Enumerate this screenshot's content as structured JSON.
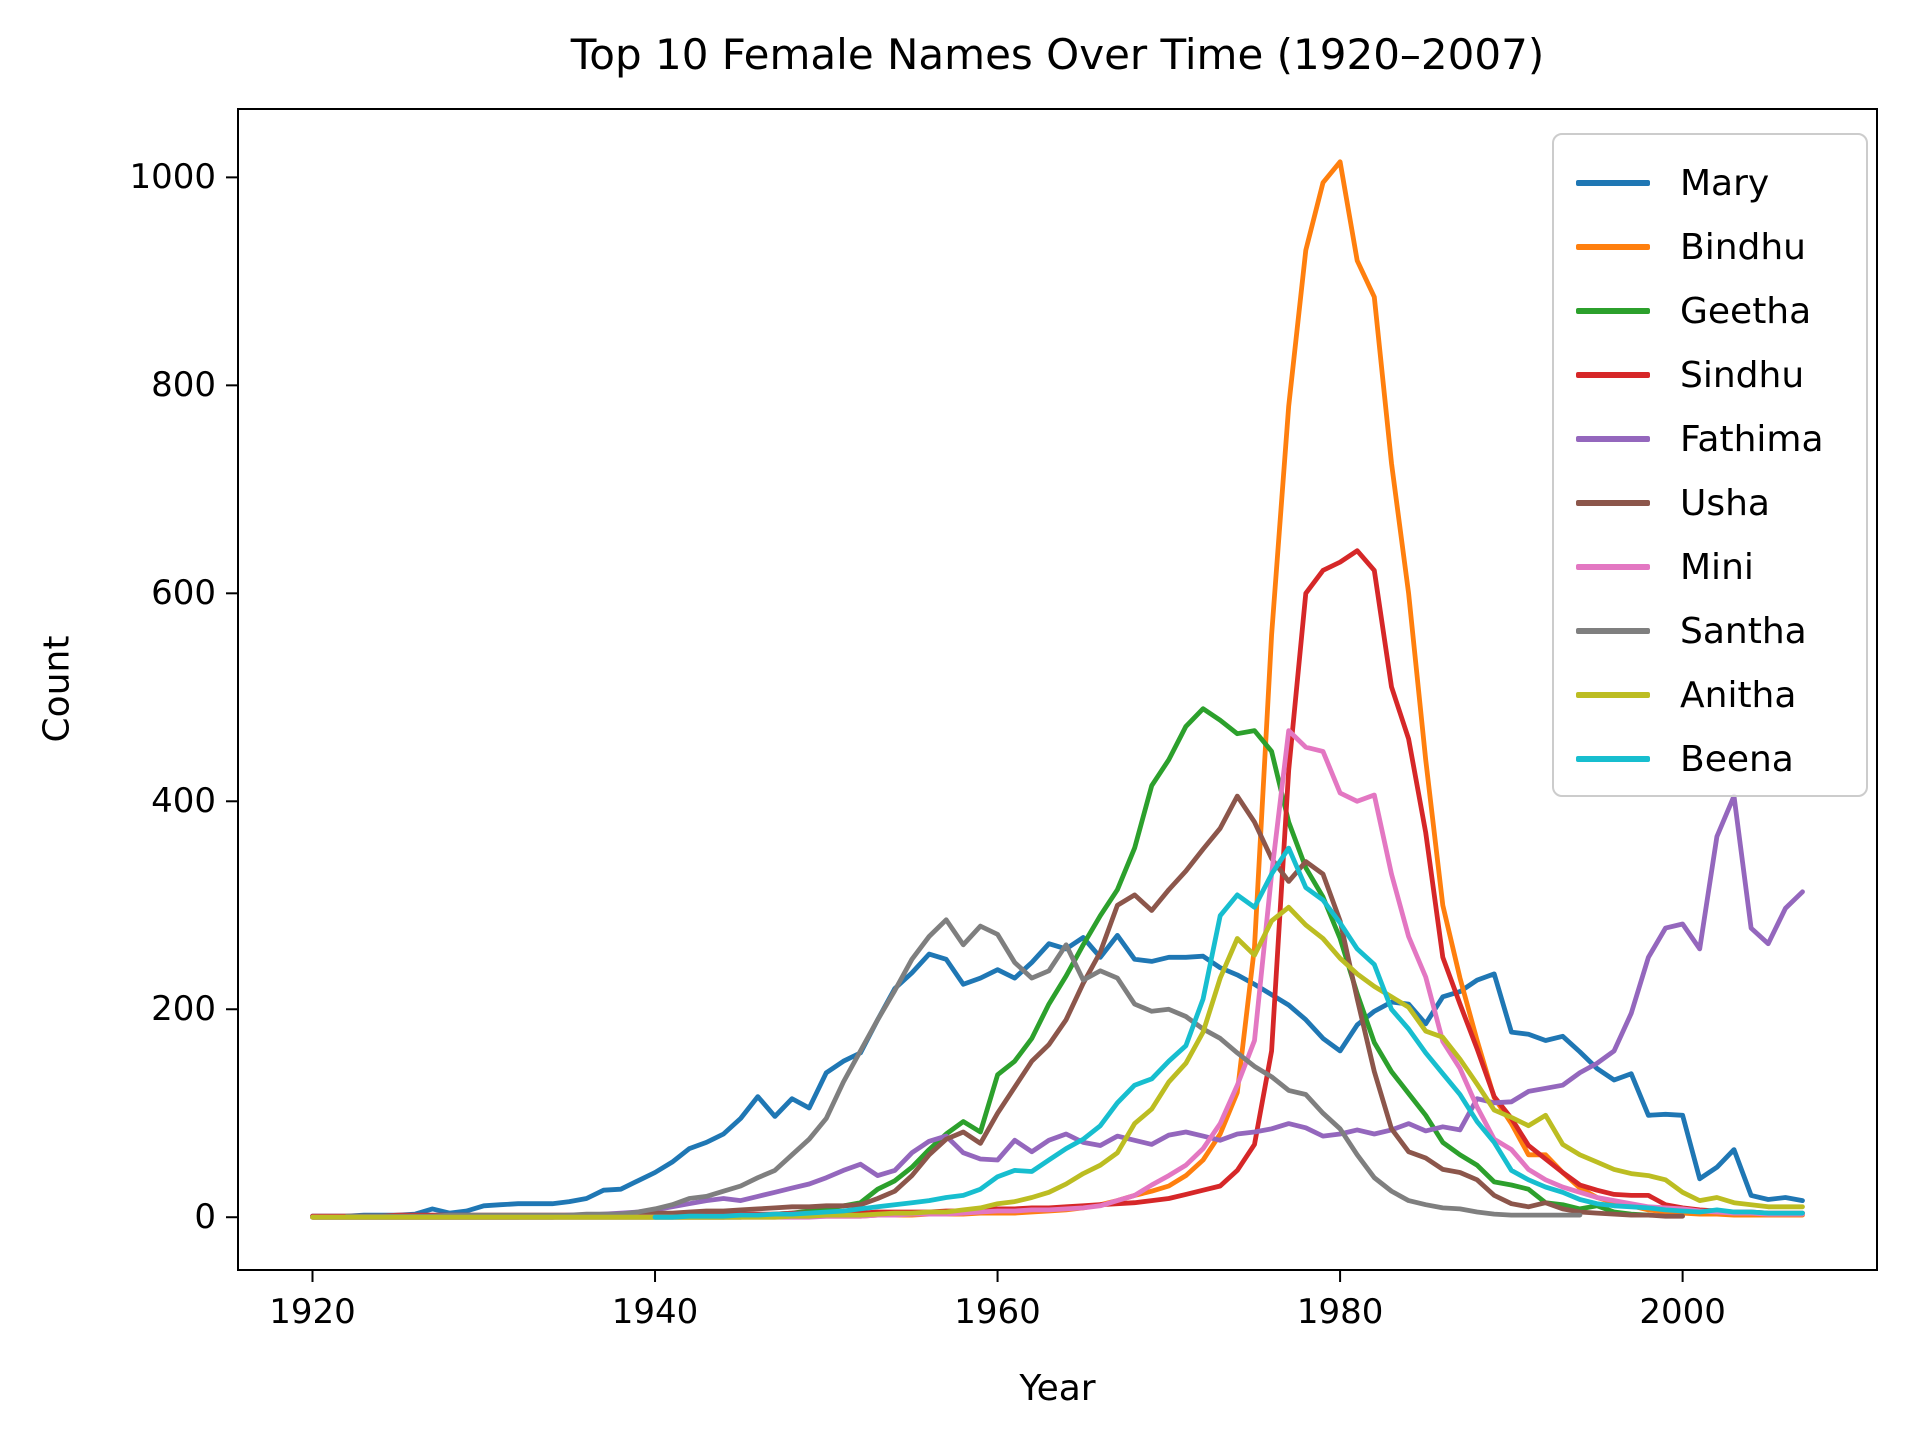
{
  "figure": {
    "background": "#ffffff"
  },
  "chart_data": {
    "type": "line",
    "title": "Top 10 Female Names Over Time (1920–2007)",
    "xlabel": "Year",
    "ylabel": "Count",
    "grid": false,
    "legend_position": "upper right",
    "xticks": [
      1920,
      1940,
      1960,
      1980,
      2000
    ],
    "yticks": [
      0,
      200,
      400,
      600,
      800,
      1000
    ],
    "xlim": [
      1915.65,
      2011.35
    ],
    "ylim": [
      -50.75,
      1065.75
    ],
    "years": [
      1920,
      1921,
      1922,
      1923,
      1924,
      1925,
      1926,
      1927,
      1928,
      1929,
      1930,
      1931,
      1932,
      1933,
      1934,
      1935,
      1936,
      1937,
      1938,
      1939,
      1940,
      1941,
      1942,
      1943,
      1944,
      1945,
      1946,
      1947,
      1948,
      1949,
      1950,
      1951,
      1952,
      1953,
      1954,
      1955,
      1956,
      1957,
      1958,
      1959,
      1960,
      1961,
      1962,
      1963,
      1964,
      1965,
      1966,
      1967,
      1968,
      1969,
      1970,
      1971,
      1972,
      1973,
      1974,
      1975,
      1976,
      1977,
      1978,
      1979,
      1980,
      1981,
      1982,
      1983,
      1984,
      1985,
      1986,
      1987,
      1988,
      1989,
      1990,
      1991,
      1992,
      1993,
      1994,
      1995,
      1996,
      1997,
      1998,
      1999,
      2000,
      2001,
      2002,
      2003,
      2004,
      2005,
      2006,
      2007
    ],
    "series": [
      {
        "name": "Mary",
        "color": "#1f77b4",
        "values": [
          1,
          1,
          1,
          2,
          2,
          2,
          3,
          8,
          4,
          6,
          11,
          12,
          13,
          13,
          13,
          15,
          18,
          26,
          27,
          35,
          43,
          53,
          66,
          72,
          80,
          95,
          116,
          97,
          114,
          105,
          139,
          150,
          158,
          190,
          220,
          235,
          253,
          248,
          224,
          230,
          238,
          230,
          245,
          263,
          258,
          269,
          250,
          271,
          248,
          246,
          250,
          250,
          251,
          240,
          233,
          224,
          214,
          204,
          190,
          172,
          160,
          185,
          198,
          207,
          205,
          186,
          212,
          217,
          228,
          234,
          178,
          176,
          170,
          174,
          159,
          143,
          132,
          138,
          98,
          99,
          98,
          37,
          48,
          65,
          21,
          17,
          19,
          16
        ]
      },
      {
        "name": "Bindhu",
        "color": "#ff7f0e",
        "values": [
          0,
          0,
          0,
          0,
          0,
          0,
          0,
          0,
          0,
          0,
          0,
          0,
          0,
          0,
          0,
          0,
          0,
          0,
          0,
          0,
          0,
          0,
          0,
          0,
          0,
          1,
          1,
          1,
          1,
          1,
          1,
          1,
          1,
          2,
          2,
          2,
          3,
          3,
          3,
          4,
          4,
          4,
          5,
          6,
          7,
          9,
          12,
          16,
          21,
          25,
          30,
          40,
          55,
          80,
          120,
          260,
          560,
          780,
          930,
          995,
          1015,
          920,
          885,
          725,
          600,
          440,
          300,
          230,
          170,
          115,
          90,
          60,
          60,
          43,
          28,
          19,
          14,
          11,
          7,
          5,
          4,
          3,
          3,
          2,
          2,
          2,
          2,
          2
        ]
      },
      {
        "name": "Geetha",
        "color": "#2ca02c",
        "values": [
          0,
          0,
          0,
          0,
          0,
          0,
          0,
          0,
          0,
          0,
          0,
          0,
          0,
          0,
          0,
          0,
          0,
          0,
          0,
          0,
          0,
          0,
          0,
          0,
          0,
          0,
          2,
          3,
          4,
          6,
          8,
          11,
          14,
          27,
          35,
          48,
          65,
          80,
          92,
          82,
          137,
          150,
          172,
          205,
          232,
          262,
          290,
          315,
          355,
          415,
          440,
          472,
          489,
          478,
          465,
          468,
          448,
          380,
          336,
          308,
          268,
          215,
          168,
          140,
          119,
          98,
          72,
          60,
          50,
          34,
          31,
          27,
          14,
          12,
          8,
          11,
          5,
          3,
          2,
          null,
          null,
          null,
          null,
          null,
          null,
          null,
          null,
          null
        ]
      },
      {
        "name": "Sindhu",
        "color": "#d62728",
        "values": [
          1,
          1,
          1,
          1,
          1,
          2,
          2,
          2,
          2,
          2,
          2,
          2,
          2,
          2,
          2,
          2,
          2,
          2,
          2,
          2,
          2,
          2,
          3,
          3,
          3,
          3,
          3,
          3,
          4,
          4,
          4,
          4,
          4,
          5,
          5,
          5,
          5,
          6,
          6,
          7,
          8,
          8,
          9,
          9,
          10,
          11,
          12,
          13,
          14,
          16,
          18,
          22,
          26,
          30,
          45,
          70,
          160,
          430,
          600,
          622,
          630,
          641,
          622,
          510,
          460,
          370,
          250,
          205,
          162,
          116,
          95,
          69,
          56,
          43,
          31,
          26,
          22,
          21,
          21,
          12,
          9,
          7,
          6,
          5,
          5,
          4,
          4,
          4
        ]
      },
      {
        "name": "Fathima",
        "color": "#9467bd",
        "values": [
          0,
          0,
          0,
          0,
          0,
          0,
          0,
          0,
          0,
          0,
          0,
          0,
          0,
          1,
          1,
          2,
          2,
          3,
          4,
          5,
          7,
          10,
          13,
          16,
          18,
          16,
          20,
          24,
          28,
          32,
          38,
          45,
          51,
          40,
          45,
          62,
          73,
          78,
          62,
          56,
          55,
          74,
          63,
          74,
          80,
          72,
          69,
          78,
          74,
          70,
          79,
          82,
          78,
          74,
          80,
          82,
          85,
          90,
          86,
          78,
          80,
          84,
          80,
          84,
          90,
          83,
          87,
          84,
          114,
          110,
          111,
          121,
          124,
          127,
          139,
          148,
          160,
          196,
          250,
          278,
          282,
          258,
          366,
          405,
          278,
          263,
          297,
          313
        ]
      },
      {
        "name": "Usha",
        "color": "#8c564b",
        "values": [
          0,
          0,
          0,
          0,
          0,
          0,
          0,
          0,
          0,
          0,
          0,
          0,
          0,
          0,
          0,
          1,
          2,
          2,
          3,
          3,
          4,
          4,
          5,
          6,
          6,
          7,
          8,
          9,
          10,
          10,
          11,
          11,
          12,
          18,
          25,
          40,
          60,
          75,
          82,
          71,
          100,
          125,
          150,
          166,
          190,
          225,
          255,
          300,
          310,
          295,
          315,
          333,
          354,
          374,
          405,
          380,
          345,
          323,
          342,
          330,
          285,
          210,
          140,
          85,
          63,
          57,
          46,
          43,
          36,
          21,
          13,
          10,
          14,
          8,
          5,
          4,
          3,
          2,
          2,
          1,
          1,
          null,
          null,
          null,
          null,
          null,
          null,
          null
        ]
      },
      {
        "name": "Mini",
        "color": "#e377c2",
        "values": [
          0,
          0,
          0,
          0,
          0,
          0,
          0,
          0,
          0,
          0,
          0,
          0,
          0,
          0,
          0,
          0,
          0,
          0,
          0,
          0,
          0,
          0,
          0,
          0,
          0,
          0,
          0,
          0,
          0,
          0,
          1,
          1,
          1,
          2,
          2,
          3,
          3,
          3,
          4,
          5,
          6,
          6,
          7,
          7,
          8,
          9,
          11,
          16,
          21,
          31,
          40,
          50,
          66,
          90,
          127,
          170,
          330,
          468,
          452,
          448,
          408,
          400,
          406,
          330,
          270,
          231,
          169,
          143,
          106,
          75,
          65,
          46,
          36,
          29,
          24,
          19,
          16,
          13,
          10,
          9,
          8,
          6,
          5,
          4,
          4,
          3,
          3,
          3
        ]
      },
      {
        "name": "Santha",
        "color": "#7f7f7f",
        "values": [
          null,
          null,
          1,
          1,
          1,
          1,
          1,
          1,
          2,
          2,
          2,
          2,
          2,
          2,
          2,
          2,
          3,
          3,
          3,
          5,
          8,
          12,
          18,
          20,
          25,
          30,
          38,
          45,
          60,
          75,
          95,
          130,
          160,
          190,
          218,
          248,
          270,
          286,
          262,
          280,
          272,
          245,
          230,
          237,
          262,
          228,
          237,
          230,
          205,
          198,
          200,
          193,
          181,
          172,
          158,
          145,
          135,
          122,
          118,
          100,
          85,
          60,
          38,
          25,
          16,
          12,
          9,
          8,
          5,
          3,
          2,
          2,
          2,
          2,
          2,
          null,
          null,
          null,
          null,
          null,
          null,
          null,
          null,
          null,
          null,
          null,
          null,
          null
        ]
      },
      {
        "name": "Anitha",
        "color": "#bcbd22",
        "values": [
          0,
          0,
          0,
          0,
          0,
          0,
          0,
          0,
          0,
          0,
          0,
          0,
          0,
          0,
          0,
          0,
          0,
          0,
          0,
          0,
          0,
          0,
          0,
          0,
          0,
          0,
          0,
          0,
          1,
          1,
          2,
          2,
          2,
          3,
          4,
          4,
          5,
          5,
          7,
          9,
          13,
          15,
          19,
          24,
          32,
          42,
          50,
          62,
          90,
          104,
          130,
          148,
          178,
          230,
          268,
          252,
          285,
          298,
          281,
          268,
          249,
          234,
          222,
          212,
          202,
          179,
          173,
          152,
          128,
          103,
          96,
          88,
          98,
          70,
          60,
          53,
          46,
          42,
          40,
          36,
          24,
          16,
          19,
          14,
          12,
          10,
          10,
          10
        ]
      },
      {
        "name": "Beena",
        "color": "#17becf",
        "values": [
          null,
          null,
          null,
          null,
          null,
          null,
          null,
          null,
          null,
          null,
          null,
          null,
          null,
          null,
          null,
          null,
          null,
          null,
          null,
          null,
          0,
          0,
          1,
          1,
          1,
          2,
          2,
          3,
          3,
          4,
          5,
          6,
          8,
          10,
          12,
          14,
          16,
          19,
          21,
          27,
          39,
          45,
          44,
          55,
          66,
          75,
          88,
          110,
          127,
          133,
          150,
          165,
          210,
          290,
          310,
          298,
          330,
          355,
          317,
          305,
          283,
          258,
          243,
          200,
          181,
          158,
          138,
          118,
          92,
          72,
          45,
          36,
          29,
          24,
          17,
          13,
          11,
          10,
          9,
          7,
          6,
          5,
          7,
          5,
          5,
          4,
          4,
          4
        ]
      }
    ]
  }
}
